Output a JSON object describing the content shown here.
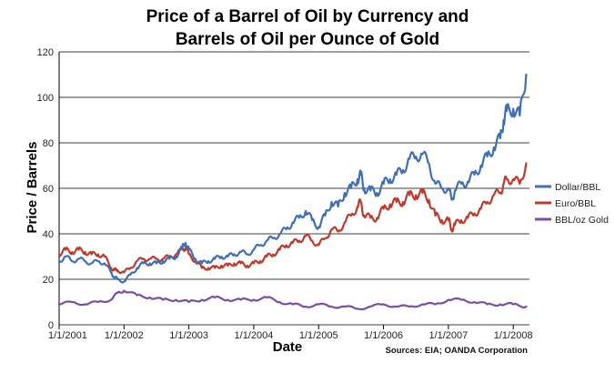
{
  "chart_data": {
    "type": "line",
    "title": [
      "Price of a Barrel of Oil by Currency and",
      "Barrels of Oil per Ounce of Gold"
    ],
    "xlabel": "Date",
    "ylabel": "Price / Barrels",
    "ylim": [
      0,
      120
    ],
    "yticks": [
      0,
      20,
      40,
      60,
      80,
      100,
      120
    ],
    "xlim": [
      2001.0,
      2008.25
    ],
    "xticks": [
      {
        "value": 2001,
        "label": "1/1/2001"
      },
      {
        "value": 2002,
        "label": "1/1/2002"
      },
      {
        "value": 2003,
        "label": "1/1/2003"
      },
      {
        "value": 2004,
        "label": "1/1/2004"
      },
      {
        "value": 2005,
        "label": "1/1/2005"
      },
      {
        "value": 2006,
        "label": "1/1/2006"
      },
      {
        "value": 2007,
        "label": "1/1/2007"
      },
      {
        "value": 2008,
        "label": "1/1/2008"
      }
    ],
    "grid": true,
    "legend_position": "right",
    "source_note": "Sources: EIA; OANDA Corporation",
    "series": [
      {
        "name": "Dollar/BBL",
        "color": "#3f6fb5",
        "x": [
          2001.0,
          2001.1,
          2001.2,
          2001.3,
          2001.4,
          2001.5,
          2001.6,
          2001.7,
          2001.8,
          2001.85,
          2001.9,
          2002.0,
          2002.1,
          2002.2,
          2002.3,
          2002.4,
          2002.5,
          2002.6,
          2002.7,
          2002.8,
          2002.9,
          2002.95,
          2003.0,
          2003.1,
          2003.2,
          2003.3,
          2003.4,
          2003.5,
          2003.6,
          2003.7,
          2003.8,
          2003.9,
          2004.0,
          2004.1,
          2004.2,
          2004.3,
          2004.4,
          2004.5,
          2004.6,
          2004.7,
          2004.8,
          2004.9,
          2005.0,
          2005.1,
          2005.2,
          2005.3,
          2005.4,
          2005.5,
          2005.6,
          2005.65,
          2005.7,
          2005.8,
          2005.9,
          2006.0,
          2006.1,
          2006.2,
          2006.3,
          2006.4,
          2006.5,
          2006.6,
          2006.7,
          2006.8,
          2006.9,
          2007.0,
          2007.05,
          2007.1,
          2007.2,
          2007.3,
          2007.4,
          2007.5,
          2007.6,
          2007.7,
          2007.8,
          2007.85,
          2007.9,
          2008.0,
          2008.1,
          2008.2
        ],
        "values": [
          28,
          30,
          28,
          29,
          28,
          27,
          28,
          27,
          23,
          21,
          20,
          19,
          22,
          25,
          27,
          27,
          27,
          28,
          29,
          30,
          34,
          36,
          33,
          29,
          27,
          28,
          29,
          30,
          30,
          31,
          32,
          31,
          33,
          35,
          37,
          38,
          40,
          42,
          45,
          47,
          50,
          46,
          43,
          48,
          54,
          52,
          58,
          60,
          64,
          66,
          60,
          59,
          58,
          62,
          64,
          66,
          68,
          73,
          74,
          75,
          71,
          62,
          60,
          60,
          55,
          59,
          62,
          63,
          66,
          70,
          74,
          78,
          82,
          90,
          94,
          95,
          92,
          110
        ]
      },
      {
        "name": "Euro/BBL",
        "color": "#c0392b",
        "x": [
          2001.0,
          2001.1,
          2001.2,
          2001.3,
          2001.4,
          2001.5,
          2001.6,
          2001.7,
          2001.8,
          2001.85,
          2001.9,
          2002.0,
          2002.1,
          2002.2,
          2002.3,
          2002.4,
          2002.5,
          2002.6,
          2002.7,
          2002.8,
          2002.9,
          2002.95,
          2003.0,
          2003.1,
          2003.2,
          2003.3,
          2003.4,
          2003.5,
          2003.6,
          2003.7,
          2003.8,
          2003.9,
          2004.0,
          2004.1,
          2004.2,
          2004.3,
          2004.4,
          2004.5,
          2004.6,
          2004.7,
          2004.8,
          2004.9,
          2005.0,
          2005.1,
          2005.2,
          2005.3,
          2005.4,
          2005.5,
          2005.6,
          2005.65,
          2005.7,
          2005.8,
          2005.9,
          2006.0,
          2006.1,
          2006.2,
          2006.3,
          2006.4,
          2006.5,
          2006.6,
          2006.7,
          2006.8,
          2006.9,
          2007.0,
          2007.05,
          2007.1,
          2007.2,
          2007.3,
          2007.4,
          2007.5,
          2007.6,
          2007.7,
          2007.8,
          2007.85,
          2007.9,
          2008.0,
          2008.1,
          2008.2
        ],
        "values": [
          31,
          33,
          32,
          33,
          32,
          31,
          31,
          30,
          25,
          24,
          24,
          23,
          25,
          28,
          29,
          29,
          29,
          29,
          30,
          31,
          33,
          34,
          31,
          28,
          25,
          25,
          25,
          26,
          26,
          27,
          27,
          26,
          27,
          28,
          30,
          31,
          33,
          35,
          36,
          37,
          39,
          37,
          35,
          38,
          42,
          41,
          45,
          48,
          52,
          54,
          48,
          47,
          47,
          51,
          53,
          54,
          54,
          57,
          57,
          58,
          55,
          48,
          46,
          46,
          42,
          44,
          46,
          47,
          49,
          51,
          54,
          57,
          58,
          62,
          64,
          64,
          62,
          71
        ]
      },
      {
        "name": "BBL/oz Gold",
        "color": "#7a4fa0",
        "x": [
          2001.0,
          2001.2,
          2001.4,
          2001.6,
          2001.8,
          2001.9,
          2002.0,
          2002.2,
          2002.4,
          2002.6,
          2002.8,
          2003.0,
          2003.2,
          2003.4,
          2003.6,
          2003.8,
          2004.0,
          2004.2,
          2004.4,
          2004.6,
          2004.8,
          2005.0,
          2005.2,
          2005.4,
          2005.6,
          2005.8,
          2006.0,
          2006.2,
          2006.4,
          2006.6,
          2006.8,
          2007.0,
          2007.2,
          2007.4,
          2007.6,
          2007.8,
          2008.0,
          2008.2
        ],
        "values": [
          9,
          10,
          9,
          10,
          11,
          14,
          15,
          13,
          12,
          11,
          11,
          10,
          11,
          12,
          11,
          11,
          11,
          12,
          10,
          9,
          8,
          9,
          8,
          8,
          7,
          8,
          9,
          8,
          8,
          9,
          9,
          11,
          11,
          10,
          9,
          9,
          9,
          8
        ]
      }
    ]
  }
}
